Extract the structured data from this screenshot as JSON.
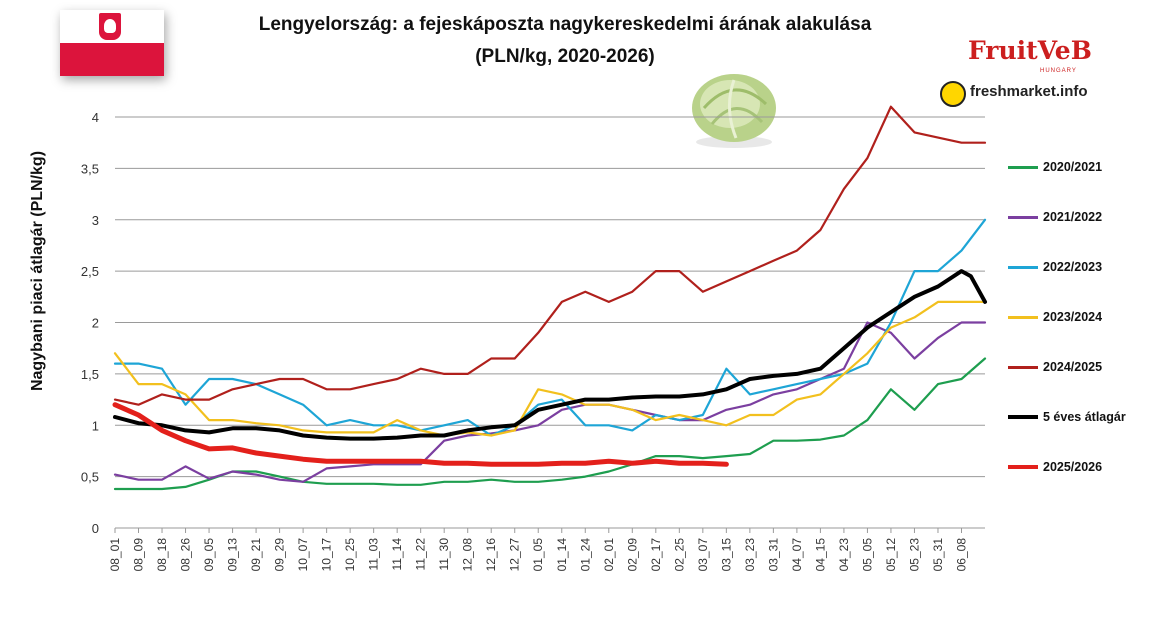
{
  "header": {
    "title_line1": "Lengyelország: a fejeskáposzta nagykereskedelmi árának alakulása",
    "title_line2": "(PLN/kg, 2020-2026)"
  },
  "icons": {
    "flag": "flag-of-poland",
    "cabbage": "cabbage-image"
  },
  "logos": {
    "fruitveb": "FruitVeB",
    "fruitveb_sub": "HUNGARY",
    "freshmarket": "freshmarket.info"
  },
  "chart_data": {
    "type": "line",
    "title": "Lengyelország: a fejeskáposzta nagykereskedelmi árának alakulása (PLN/kg, 2020-2026)",
    "xlabel": "",
    "ylabel": "Nagybani piaci átlagár (PLN/kg)",
    "ylim": [
      0,
      4.2
    ],
    "y_ticks": [
      "0",
      "0,5",
      "1",
      "1,5",
      "2",
      "2,5",
      "3",
      "3,5",
      "4"
    ],
    "x_tick_labels": [
      "08_01",
      "08_09",
      "08_18",
      "08_26",
      "09_05",
      "09_13",
      "09_21",
      "09_29",
      "10_07",
      "10_17",
      "10_25",
      "11_03",
      "11_14",
      "11_22",
      "11_30",
      "12_08",
      "12_16",
      "12_27",
      "01_05",
      "01_14",
      "01_24",
      "02_01",
      "02_09",
      "02_17",
      "02_25",
      "03_07",
      "03_15",
      "03_23",
      "03_31",
      "04_07",
      "04_15",
      "04_23",
      "05_05",
      "05_12",
      "05_23",
      "05_31",
      "06_08"
    ],
    "grid": "horizontal",
    "legend_position": "right",
    "x_count": 37,
    "series": [
      {
        "name": "2020/2021",
        "color": "#1e9e4f",
        "width": 2.2,
        "x": [
          0,
          1,
          2,
          3,
          4,
          5,
          6,
          7,
          8,
          9,
          10,
          11,
          12,
          13,
          14,
          15,
          16,
          17,
          18,
          19,
          20,
          21,
          22,
          23,
          24,
          25,
          26,
          27,
          28,
          29,
          30,
          31,
          32,
          33,
          34,
          35,
          36,
          37
        ],
        "y": [
          0.38,
          0.38,
          0.38,
          0.4,
          0.47,
          0.55,
          0.55,
          0.5,
          0.45,
          0.43,
          0.43,
          0.43,
          0.42,
          0.42,
          0.45,
          0.45,
          0.47,
          0.45,
          0.45,
          0.47,
          0.5,
          0.55,
          0.62,
          0.7,
          0.7,
          0.68,
          0.7,
          0.72,
          0.85,
          0.85,
          0.86,
          0.9,
          1.05,
          1.35,
          1.15,
          1.4,
          1.45,
          1.65
        ]
      },
      {
        "name": "2021/2022",
        "color": "#7b3fa0",
        "width": 2.2,
        "x": [
          0,
          1,
          2,
          3,
          4,
          5,
          6,
          7,
          8,
          9,
          10,
          11,
          12,
          13,
          14,
          15,
          16,
          17,
          18,
          19,
          20,
          21,
          22,
          23,
          24,
          25,
          26,
          27,
          28,
          29,
          30,
          31,
          32,
          33,
          34,
          35,
          36,
          37
        ],
        "y": [
          0.52,
          0.47,
          0.47,
          0.6,
          0.48,
          0.55,
          0.52,
          0.47,
          0.45,
          0.58,
          0.6,
          0.62,
          0.62,
          0.62,
          0.85,
          0.9,
          0.92,
          0.95,
          1.0,
          1.15,
          1.2,
          1.2,
          1.15,
          1.1,
          1.05,
          1.05,
          1.15,
          1.2,
          1.3,
          1.35,
          1.45,
          1.55,
          2.0,
          1.9,
          1.65,
          1.85,
          2.0,
          2.0
        ]
      },
      {
        "name": "2022/2023",
        "color": "#1ea5d6",
        "width": 2.2,
        "x": [
          0,
          1,
          2,
          3,
          4,
          5,
          6,
          7,
          8,
          9,
          10,
          11,
          12,
          13,
          14,
          15,
          16,
          17,
          18,
          19,
          20,
          21,
          22,
          23,
          24,
          25,
          26,
          27,
          28,
          29,
          30,
          31,
          32,
          33,
          34,
          35,
          36,
          37
        ],
        "y": [
          1.6,
          1.6,
          1.55,
          1.2,
          1.45,
          1.45,
          1.4,
          1.3,
          1.2,
          1.0,
          1.05,
          1.0,
          1.0,
          0.95,
          1.0,
          1.05,
          0.9,
          1.0,
          1.2,
          1.25,
          1.0,
          1.0,
          0.95,
          1.1,
          1.05,
          1.1,
          1.55,
          1.3,
          1.35,
          1.4,
          1.45,
          1.5,
          1.6,
          2.0,
          2.5,
          2.5,
          2.7,
          3.0
        ]
      },
      {
        "name": "2023/2024",
        "color": "#f2c01e",
        "width": 2.2,
        "x": [
          0,
          1,
          2,
          3,
          4,
          5,
          6,
          7,
          8,
          9,
          10,
          11,
          12,
          13,
          14,
          15,
          16,
          17,
          18,
          19,
          20,
          21,
          22,
          23,
          24,
          25,
          26,
          27,
          28,
          29,
          30,
          31,
          32,
          33,
          34,
          35,
          36,
          37
        ],
        "y": [
          1.7,
          1.4,
          1.4,
          1.3,
          1.05,
          1.05,
          1.02,
          1.0,
          0.95,
          0.93,
          0.93,
          0.93,
          1.05,
          0.95,
          0.9,
          0.93,
          0.9,
          0.95,
          1.35,
          1.3,
          1.2,
          1.2,
          1.15,
          1.05,
          1.1,
          1.05,
          1.0,
          1.1,
          1.1,
          1.25,
          1.3,
          1.5,
          1.7,
          1.95,
          2.05,
          2.2,
          2.2,
          2.2
        ]
      },
      {
        "name": "2024/2025",
        "color": "#b0201c",
        "width": 2.2,
        "x": [
          0,
          1,
          2,
          3,
          4,
          5,
          6,
          7,
          8,
          9,
          10,
          11,
          12,
          13,
          14,
          15,
          16,
          17,
          18,
          19,
          20,
          21,
          22,
          23,
          24,
          25,
          26,
          27,
          28,
          29,
          30,
          31,
          32,
          33,
          34,
          35,
          36,
          37
        ],
        "y": [
          1.25,
          1.2,
          1.3,
          1.25,
          1.25,
          1.35,
          1.4,
          1.45,
          1.45,
          1.35,
          1.35,
          1.4,
          1.45,
          1.55,
          1.5,
          1.5,
          1.65,
          1.65,
          1.9,
          2.2,
          2.3,
          2.2,
          2.3,
          2.5,
          2.5,
          2.3,
          2.4,
          2.5,
          2.6,
          2.7,
          2.9,
          3.3,
          3.6,
          4.1,
          3.85,
          3.8,
          3.75,
          3.75
        ]
      },
      {
        "name": "5 éves átlagár",
        "color": "#000000",
        "width": 4,
        "x": [
          0,
          1,
          2,
          3,
          4,
          5,
          6,
          7,
          8,
          9,
          10,
          11,
          12,
          13,
          14,
          15,
          16,
          17,
          18,
          19,
          20,
          21,
          22,
          23,
          24,
          25,
          26,
          27,
          28,
          29,
          30,
          31,
          32,
          33,
          34,
          35,
          36,
          36.4,
          37
        ],
        "y": [
          1.08,
          1.02,
          1.0,
          0.95,
          0.93,
          0.97,
          0.97,
          0.95,
          0.9,
          0.88,
          0.87,
          0.87,
          0.88,
          0.9,
          0.9,
          0.95,
          0.98,
          1.0,
          1.15,
          1.2,
          1.25,
          1.25,
          1.27,
          1.28,
          1.28,
          1.3,
          1.35,
          1.45,
          1.48,
          1.5,
          1.55,
          1.75,
          1.95,
          2.1,
          2.25,
          2.35,
          2.5,
          2.45,
          2.2
        ]
      },
      {
        "name": "2025/2026",
        "color": "#e3201b",
        "width": 5,
        "x": [
          0,
          1,
          2,
          3,
          4,
          5,
          6,
          7,
          8,
          9,
          10,
          11,
          12,
          13,
          14,
          15,
          16,
          17,
          18,
          19,
          20,
          21,
          22,
          23,
          24,
          25,
          26
        ],
        "y": [
          1.2,
          1.1,
          0.95,
          0.85,
          0.77,
          0.78,
          0.73,
          0.7,
          0.67,
          0.65,
          0.65,
          0.65,
          0.65,
          0.65,
          0.63,
          0.63,
          0.62,
          0.62,
          0.62,
          0.63,
          0.63,
          0.65,
          0.63,
          0.65,
          0.63,
          0.63,
          0.62
        ]
      }
    ]
  }
}
